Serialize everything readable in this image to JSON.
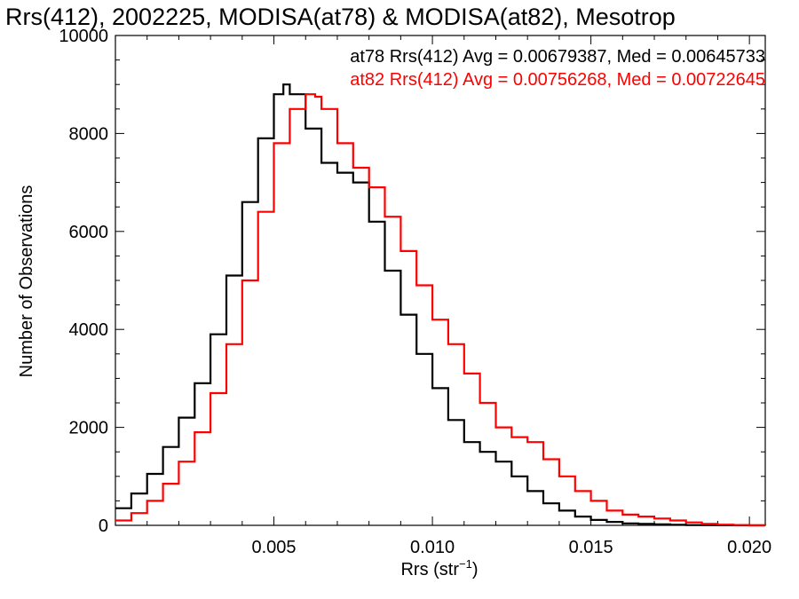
{
  "chart_data": {
    "type": "line",
    "step": true,
    "title": "Rrs(412), 2002225, MODISA(at78) & MODISA(at82), Mesotrop",
    "xlabel": "Rrs (str",
    "xlabel_sup": "−1",
    "xlabel_tail": ")",
    "ylabel": "Number of Observations",
    "xlim": [
      0.0,
      0.0205
    ],
    "ylim": [
      0,
      10000
    ],
    "xticks": [
      {
        "value": 0.005,
        "label": "0.005"
      },
      {
        "value": 0.01,
        "label": "0.010"
      },
      {
        "value": 0.015,
        "label": "0.015"
      },
      {
        "value": 0.02,
        "label": "0.020"
      }
    ],
    "yticks": [
      {
        "value": 0,
        "label": "0"
      },
      {
        "value": 2000,
        "label": "2000"
      },
      {
        "value": 4000,
        "label": "4000"
      },
      {
        "value": 6000,
        "label": "6000"
      },
      {
        "value": 8000,
        "label": "8000"
      },
      {
        "value": 10000,
        "label": "10000"
      }
    ],
    "legend_placement": "top-right",
    "annotations": [
      {
        "text": "at78 Rrs(412) Avg = 0.00679387, Med = 0.00645733",
        "color": "#000000"
      },
      {
        "text": "at82 Rrs(412) Avg = 0.00756268, Med = 0.00722645",
        "color": "#ff0000"
      }
    ],
    "series": [
      {
        "color": "#000000",
        "x": [
          0.0,
          0.0005,
          0.001,
          0.0015,
          0.002,
          0.0025,
          0.003,
          0.0035,
          0.004,
          0.0045,
          0.005,
          0.0053,
          0.0055,
          0.006,
          0.0065,
          0.007,
          0.0075,
          0.008,
          0.0085,
          0.009,
          0.0095,
          0.01,
          0.0105,
          0.011,
          0.0115,
          0.012,
          0.0125,
          0.013,
          0.0135,
          0.014,
          0.0145,
          0.015,
          0.0155,
          0.016,
          0.0165,
          0.017,
          0.0175,
          0.018,
          0.0185,
          0.019,
          0.0195,
          0.02,
          0.0205
        ],
        "y": [
          350,
          650,
          1050,
          1600,
          2200,
          2900,
          3900,
          5100,
          6600,
          7900,
          8800,
          9000,
          8800,
          8100,
          7400,
          7200,
          7000,
          6200,
          5200,
          4300,
          3500,
          2800,
          2150,
          1700,
          1500,
          1300,
          1000,
          700,
          450,
          300,
          180,
          110,
          70,
          40,
          30,
          20,
          10,
          5,
          3,
          2,
          1,
          0,
          0
        ]
      },
      {
        "color": "#ff0000",
        "x": [
          0.0,
          0.0005,
          0.001,
          0.0015,
          0.002,
          0.0025,
          0.003,
          0.0035,
          0.004,
          0.0045,
          0.005,
          0.0055,
          0.006,
          0.0063,
          0.0065,
          0.007,
          0.0075,
          0.008,
          0.0085,
          0.009,
          0.0095,
          0.01,
          0.0105,
          0.011,
          0.0115,
          0.012,
          0.0125,
          0.013,
          0.0135,
          0.014,
          0.0145,
          0.015,
          0.0155,
          0.016,
          0.0165,
          0.017,
          0.0175,
          0.018,
          0.0185,
          0.019,
          0.0195,
          0.02,
          0.0205
        ],
        "y": [
          100,
          250,
          500,
          850,
          1300,
          1900,
          2700,
          3700,
          5000,
          6400,
          7800,
          8500,
          8800,
          8750,
          8500,
          7800,
          7300,
          6900,
          6300,
          5600,
          4900,
          4200,
          3700,
          3100,
          2500,
          2000,
          1800,
          1700,
          1350,
          1000,
          700,
          500,
          300,
          220,
          180,
          140,
          100,
          60,
          30,
          15,
          5,
          2,
          0
        ]
      }
    ]
  }
}
